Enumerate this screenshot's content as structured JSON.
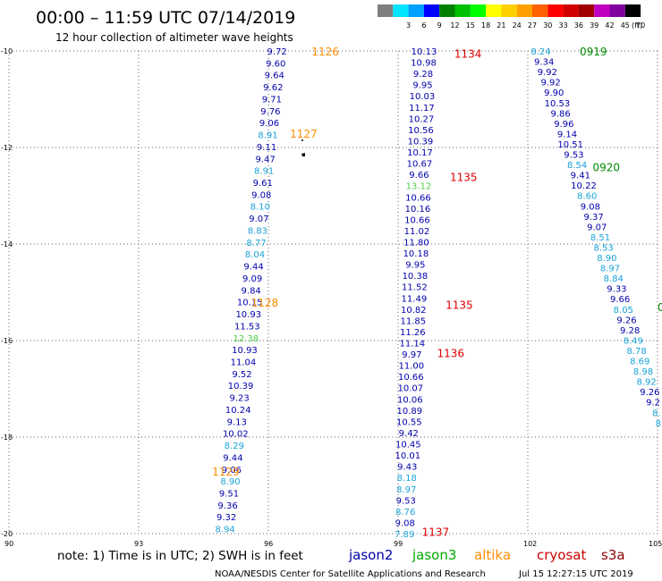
{
  "header": {
    "title": "00:00 – 11:59 UTC 07/14/2019",
    "subtitle": "12 hour collection of altimeter wave heights"
  },
  "legend": {
    "bins": [
      {
        "label": "",
        "color": "#7f7f7f"
      },
      {
        "label": "3",
        "color": "#00e5ff"
      },
      {
        "label": "6",
        "color": "#00a0ff"
      },
      {
        "label": "9",
        "color": "#0000ff"
      },
      {
        "label": "12",
        "color": "#008000"
      },
      {
        "label": "15",
        "color": "#00c000"
      },
      {
        "label": "18",
        "color": "#00ff00"
      },
      {
        "label": "21",
        "color": "#ffff00"
      },
      {
        "label": "24",
        "color": "#ffd000"
      },
      {
        "label": "27",
        "color": "#ffa000"
      },
      {
        "label": "30",
        "color": "#ff6000"
      },
      {
        "label": "33",
        "color": "#ff0000"
      },
      {
        "label": "36",
        "color": "#d00000"
      },
      {
        "label": "39",
        "color": "#a00000"
      },
      {
        "label": "42",
        "color": "#c000c0"
      },
      {
        "label": "45",
        "color": "#8000a0"
      },
      {
        "label": "70",
        "color": "#000000"
      }
    ],
    "unit": "(ft)"
  },
  "axes": {
    "lat_labels": [
      "-10",
      "-12",
      "-14",
      "-16",
      "-18",
      "-20"
    ],
    "lon_labels": [
      "90",
      "93",
      "96",
      "99",
      "102",
      "105"
    ]
  },
  "colors": {
    "jason2": "#0000aa",
    "jason3": "#00aa00",
    "altika": "#ff8c00",
    "cryosat": "#cc0000",
    "s3a": "#8b0000",
    "light_bin": "#1aa3d9",
    "green_bin": "#4ccc4c",
    "time_orange": "#ff8c00",
    "time_red": "#dd0000",
    "time_green": "#008800"
  },
  "tracks": [
    {
      "lons": [
        96.2,
        95.0
      ],
      "lats": [
        -10.0,
        -19.9
      ],
      "values": [
        "9.72",
        "9.60",
        "9.64",
        "9.62",
        "9.71",
        "9.76",
        "9.06",
        "8.91",
        "9.11",
        "9.47",
        "8.91",
        "9.61",
        "9.08",
        "8.10",
        "9.07",
        "8.83",
        "8.77",
        "8.04",
        "9.44",
        "9.09",
        "9.84",
        "10.15",
        "10.93",
        "11.53",
        "12.38",
        "10.93",
        "11.04",
        "9.52",
        "10.39",
        "9.23",
        "10.24",
        "9.13",
        "10.02",
        "8.29",
        "9.44",
        "9.06",
        "8.90",
        "9.51",
        "9.36",
        "9.32",
        "8.94"
      ],
      "times": [
        {
          "label": "1126",
          "lon": 97.0,
          "lat": -10.0
        },
        {
          "label": "1127",
          "lon": 96.5,
          "lat": -11.7
        },
        {
          "label": "1128",
          "lon": 95.6,
          "lat": -15.2
        },
        {
          "label": "1129",
          "lon": 94.7,
          "lat": -18.7
        }
      ]
    },
    {
      "lons": [
        99.6,
        99.15
      ],
      "lats": [
        -10.0,
        -20.0
      ],
      "values": [
        "10.13",
        "10.98",
        "9.28",
        "9.95",
        "10.03",
        "11.17",
        "10.27",
        "10.56",
        "10.39",
        "10.17",
        "10.67",
        "9.66",
        "13.12",
        "10.66",
        "10.16",
        "10.66",
        "11.02",
        "11.80",
        "10.18",
        "9.95",
        "10.38",
        "11.52",
        "11.49",
        "10.82",
        "11.85",
        "11.26",
        "11.14",
        "9.97",
        "11.00",
        "10.66",
        "10.07",
        "10.06",
        "10.89",
        "10.55",
        "9.42",
        "10.45",
        "10.01",
        "9.43",
        "8.18",
        "8.97",
        "9.53",
        "8.76",
        "9.08",
        "7.89"
      ],
      "times": [
        {
          "label": "1134",
          "lon": 100.3,
          "lat": -10.05
        },
        {
          "label": "1135",
          "lon": 100.2,
          "lat": -12.6
        },
        {
          "label": "1135",
          "lon": 100.1,
          "lat": -15.25
        },
        {
          "label": "1136",
          "lon": 99.9,
          "lat": -16.25
        },
        {
          "label": "1137",
          "lon": 99.55,
          "lat": -19.95
        }
      ]
    },
    {
      "lons": [
        102.3,
        105.05
      ],
      "lats": [
        -10.0,
        -17.7
      ],
      "values": [
        "8.24",
        "9.34",
        "9.92",
        "9.92",
        "9.90",
        "10.53",
        "9.86",
        "9.96",
        "9.14",
        "10.51",
        "9.53",
        "8.54",
        "9.41",
        "10.22",
        "8.60",
        "9.08",
        "9.37",
        "9.07",
        "8.51",
        "8.53",
        "8.90",
        "8.97",
        "8.84",
        "9.33",
        "9.66",
        "8.05",
        "9.26",
        "9.28",
        "8.49",
        "8.78",
        "8.69",
        "8.98",
        "8.92",
        "9.26",
        "9.2",
        "8.",
        "8."
      ],
      "times": [
        {
          "label": "0919",
          "lon": 103.2,
          "lat": -10.0
        },
        {
          "label": "0920",
          "lon": 103.5,
          "lat": -12.4
        },
        {
          "label": "0",
          "lon": 105.0,
          "lat": -15.3
        }
      ]
    }
  ],
  "footer": {
    "note": "note: 1) Time is in UTC; 2) SWH is in feet",
    "satellites": [
      "jason2",
      "jason3",
      "altika",
      "cryosat",
      "s3a"
    ],
    "credit": "NOAA/NESDIS Center for Satellite Applications and Research",
    "timestamp": "Jul 15 12:27:15 UTC 2019"
  }
}
